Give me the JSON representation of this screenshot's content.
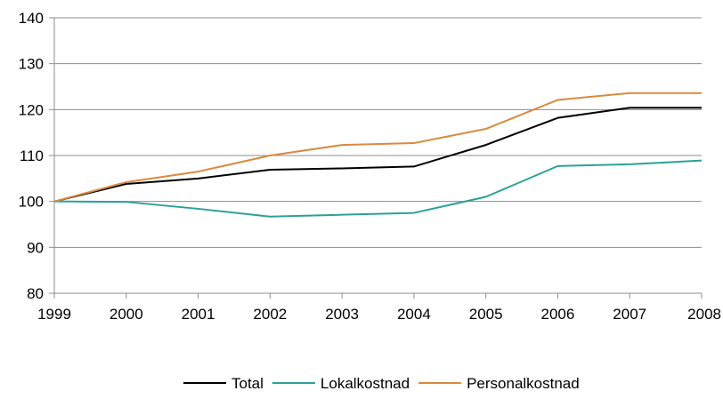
{
  "chart_data": {
    "type": "line",
    "x": [
      "1999",
      "2000",
      "2001",
      "2002",
      "2003",
      "2004",
      "2005",
      "2006",
      "2007",
      "2008"
    ],
    "ylim": [
      80,
      140
    ],
    "yticks": [
      80,
      90,
      100,
      110,
      120,
      130,
      140
    ],
    "grid": true,
    "legend_position": "bottom",
    "series": [
      {
        "name": "Total",
        "color": "#000000",
        "values": [
          100,
          103.8,
          105.0,
          106.9,
          107.2,
          107.6,
          112.3,
          118.2,
          120.4,
          120.4
        ]
      },
      {
        "name": "Lokalkostnad",
        "color": "#2aa198",
        "values": [
          100,
          99.9,
          98.4,
          96.7,
          97.1,
          97.5,
          101.0,
          107.7,
          108.1,
          108.9
        ]
      },
      {
        "name": "Personalkostnad",
        "color": "#d98a3d",
        "values": [
          100,
          104.2,
          106.5,
          110.0,
          112.3,
          112.7,
          115.8,
          122.1,
          123.6,
          123.6
        ]
      }
    ]
  }
}
